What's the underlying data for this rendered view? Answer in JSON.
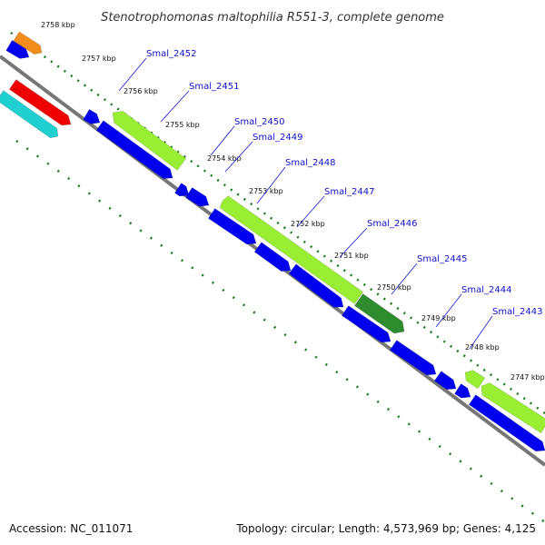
{
  "title": "Stenotrophomonas maltophilia R551-3, complete genome",
  "footer": {
    "accession": "Accession: NC_011071",
    "topology": "Topology: circular; Length: 4,573,969 bp; Genes: 4,125"
  },
  "colors": {
    "background": "#ffffff",
    "backbone": "#888888",
    "forward_strand_gene": "#99ee33",
    "forward_strand_gene_dark": "#2e8b2e",
    "reverse_strand_gene": "#0000ee",
    "other_orange": "#f28c1a",
    "other_red": "#ee0000",
    "other_cyan": "#20d0d0",
    "ticks": "#1a7a1a",
    "label_line": "#1515d0"
  },
  "tick_labels": [
    "2758 kbp",
    "2757 kbp",
    "2756 kbp",
    "2755 kbp",
    "2754 kbp",
    "2753 kbp",
    "2752 kbp",
    "2751 kbp",
    "2750 kbp",
    "2749 kbp",
    "2748 kbp",
    "2747 kbp"
  ],
  "gene_labels": [
    "Smal_2452",
    "Smal_2451",
    "Smal_2450",
    "Smal_2449",
    "Smal_2448",
    "Smal_2447",
    "Smal_2446",
    "Smal_2445",
    "Smal_2444",
    "Smal_2443"
  ]
}
